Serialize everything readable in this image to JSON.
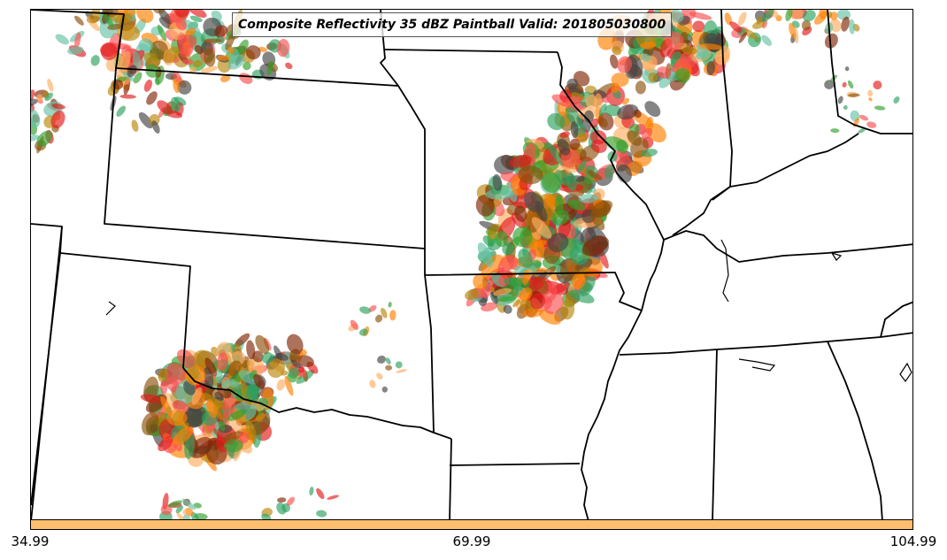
{
  "map": {
    "title": "Composite Reflectivity 35 dBZ Paintball Valid: 201805030800",
    "colorbar": {
      "color": "#fdbf6f",
      "ticks": [
        "34.99",
        "69.99",
        "104.99"
      ]
    },
    "member_colors": [
      "#e31a1c",
      "#ff7f00",
      "#fdae61",
      "#33a02c",
      "#66c2a5",
      "#8c510a",
      "#7f2704",
      "#b8860b",
      "#444444",
      "#fb5050",
      "#2ca25f"
    ]
  }
}
